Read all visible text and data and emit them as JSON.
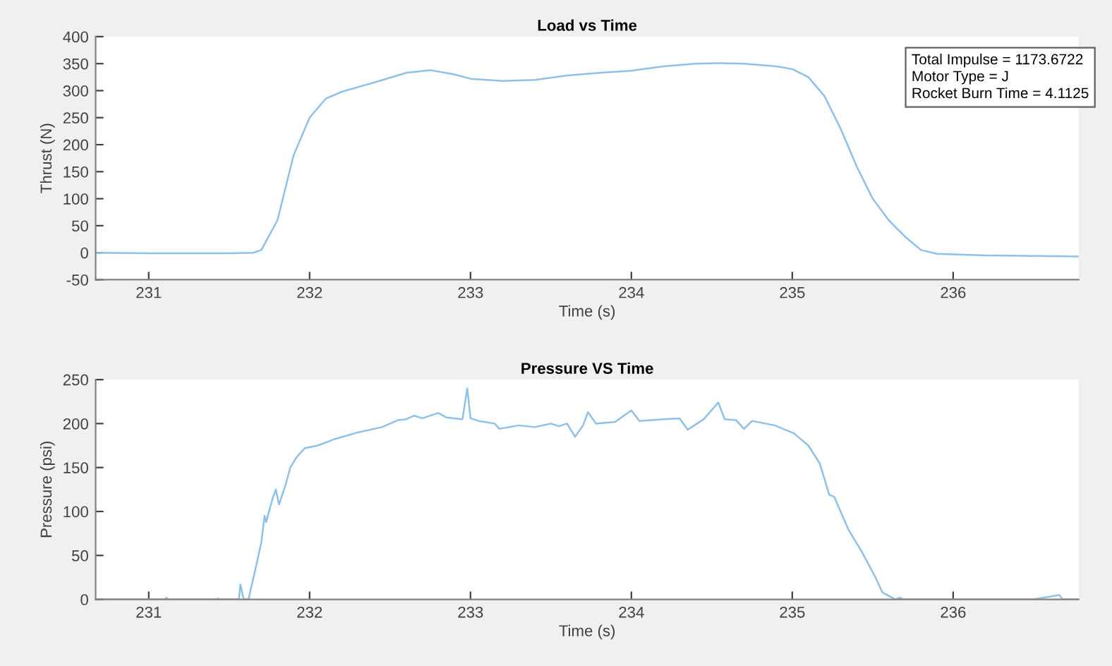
{
  "chart_data": [
    {
      "type": "line",
      "title": "Load vs Time",
      "xlabel": "Time (s)",
      "ylabel": "Thrust (N)",
      "annotations": [
        "Total Impulse = 1173.6722",
        "Motor Type = J",
        "Rocket Burn Time = 4.1125"
      ],
      "xlim": [
        230.67,
        236.78
      ],
      "xticks": [
        231,
        232,
        233,
        234,
        235,
        236
      ],
      "ylim": [
        -50,
        400
      ],
      "yticks": [
        -50,
        0,
        50,
        100,
        150,
        200,
        250,
        300,
        350,
        400
      ],
      "series": [
        {
          "color": "#8ec0e8",
          "x": [
            230.67,
            231.0,
            231.5,
            231.65,
            231.7,
            231.8,
            231.9,
            232.0,
            232.1,
            232.2,
            232.4,
            232.6,
            232.75,
            232.9,
            233.0,
            233.2,
            233.4,
            233.6,
            233.8,
            234.0,
            234.2,
            234.4,
            234.55,
            234.7,
            234.9,
            235.0,
            235.1,
            235.2,
            235.3,
            235.4,
            235.5,
            235.6,
            235.7,
            235.8,
            235.9,
            236.2,
            236.5,
            236.78
          ],
          "values": [
            0,
            -1,
            -1,
            0,
            5,
            60,
            180,
            250,
            285,
            298,
            315,
            333,
            338,
            330,
            322,
            318,
            320,
            328,
            333,
            337,
            345,
            350,
            351,
            350,
            345,
            340,
            325,
            290,
            230,
            160,
            100,
            60,
            30,
            5,
            -2,
            -5,
            -6,
            -7
          ]
        }
      ]
    },
    {
      "type": "line",
      "title": "Pressure VS Time",
      "xlabel": "Time (s)",
      "ylabel": "Pressure (psi)",
      "xlim": [
        230.67,
        236.78
      ],
      "xticks": [
        231,
        232,
        233,
        234,
        235,
        236
      ],
      "ylim": [
        0,
        250
      ],
      "yticks": [
        0,
        50,
        100,
        150,
        200,
        250
      ],
      "series": [
        {
          "color": "#8ec0e8",
          "x": [
            230.67,
            231.1,
            231.11,
            231.12,
            231.42,
            231.43,
            231.44,
            231.56,
            231.57,
            231.59,
            231.62,
            231.67,
            231.7,
            231.72,
            231.73,
            231.77,
            231.79,
            231.81,
            231.85,
            231.88,
            231.92,
            231.97,
            232.05,
            232.15,
            232.3,
            232.45,
            232.55,
            232.6,
            232.65,
            232.7,
            232.8,
            232.85,
            232.95,
            232.98,
            233.0,
            233.05,
            233.15,
            233.18,
            233.3,
            233.4,
            233.5,
            233.55,
            233.6,
            233.65,
            233.7,
            233.73,
            233.78,
            233.9,
            234.0,
            234.05,
            234.2,
            234.3,
            234.35,
            234.45,
            234.54,
            234.58,
            234.65,
            234.7,
            234.75,
            234.89,
            235.01,
            235.1,
            235.17,
            235.23,
            235.26,
            235.35,
            235.43,
            235.52,
            235.56,
            235.61,
            235.64,
            235.67,
            235.69,
            236.5,
            236.66,
            236.68,
            236.78
          ],
          "values": [
            0,
            0,
            2,
            0,
            0,
            1,
            0,
            0,
            17,
            0,
            0,
            40,
            65,
            95,
            88,
            115,
            125,
            108,
            130,
            150,
            162,
            172,
            175,
            182,
            190,
            196,
            204,
            205,
            209,
            206,
            212,
            207,
            205,
            240,
            206,
            203,
            200,
            194,
            198,
            196,
            200,
            197,
            200,
            185,
            198,
            213,
            200,
            202,
            215,
            203,
            205,
            206,
            193,
            205,
            224,
            205,
            204,
            194,
            203,
            198,
            189,
            175,
            155,
            119,
            117,
            79,
            55,
            24,
            8,
            3,
            0,
            2,
            0,
            0,
            5,
            0,
            0
          ]
        }
      ]
    }
  ]
}
